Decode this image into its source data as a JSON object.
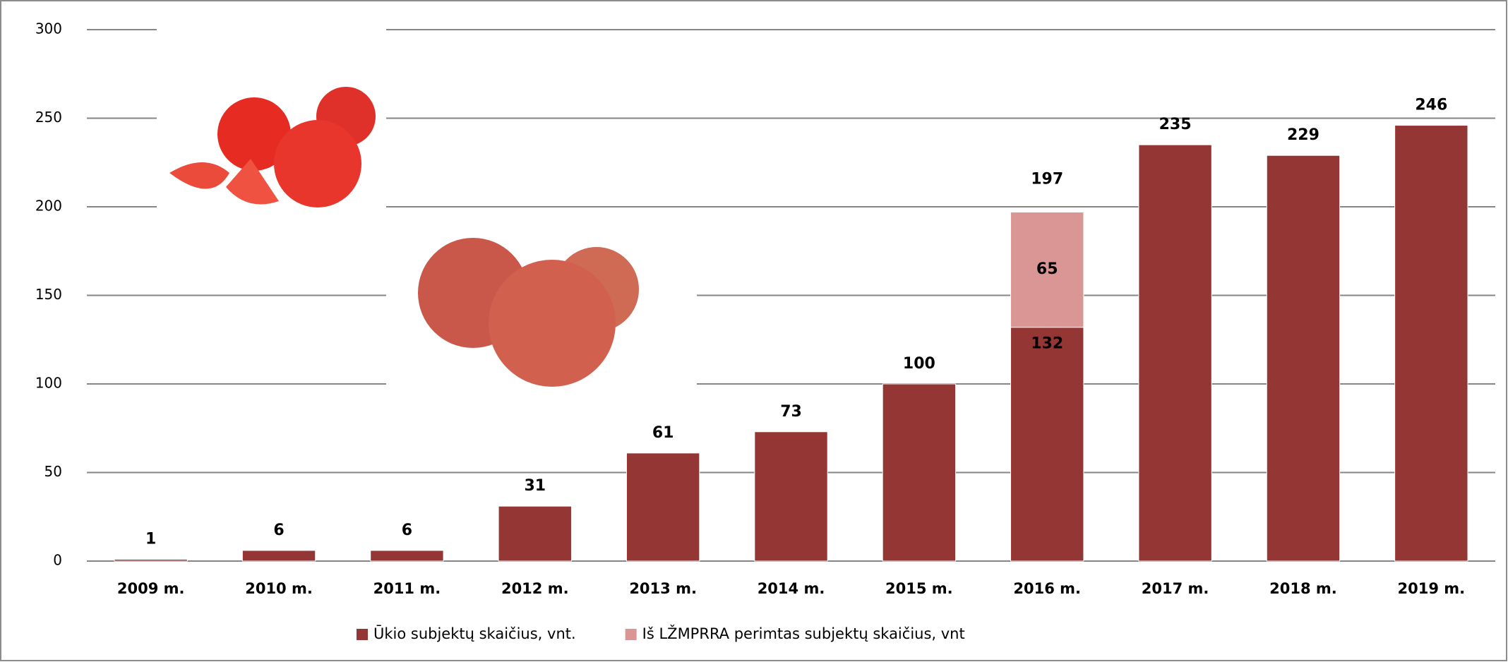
{
  "chart_data": {
    "type": "stacked-bar",
    "categories": [
      "2009 m.",
      "2010 m.",
      "2011 m.",
      "2012 m.",
      "2013 m.",
      "2014 m.",
      "2015 m.",
      "2016 m.",
      "2017 m.",
      "2018 m.",
      "2019 m."
    ],
    "series": [
      {
        "name": "Ūkio subjektų skaičius, vnt.",
        "color": "#943634",
        "values": [
          1,
          6,
          6,
          31,
          61,
          73,
          100,
          132,
          235,
          229,
          246
        ]
      },
      {
        "name": "Iš LŽMPRRA perimtas subjektų skaičius, vnt",
        "color": "#d99694",
        "values": [
          null,
          null,
          null,
          null,
          null,
          null,
          null,
          65,
          null,
          null,
          null
        ]
      }
    ],
    "stack_totals": [
      null,
      null,
      null,
      null,
      null,
      null,
      null,
      197,
      null,
      null,
      null
    ],
    "ylim": [
      0,
      300
    ],
    "yticks": [
      0,
      50,
      100,
      150,
      200,
      250,
      300
    ],
    "grid": true,
    "legend": "bottom"
  }
}
